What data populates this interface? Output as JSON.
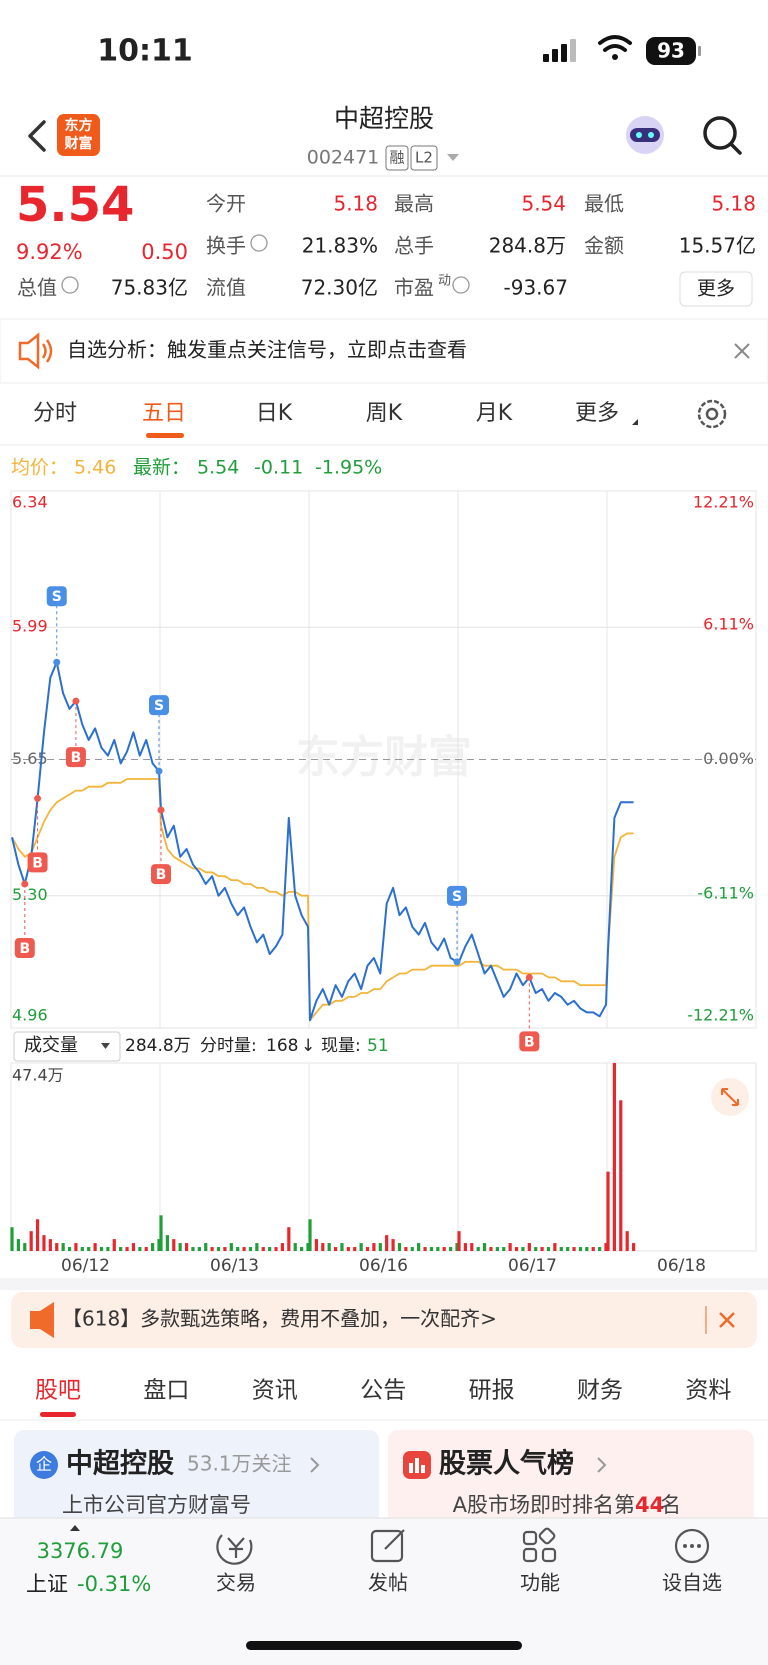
{
  "status_bar": {
    "time": "10:11",
    "battery": "93"
  },
  "header": {
    "logo": [
      "东方",
      "财富"
    ],
    "title": "中超控股",
    "code": "002471",
    "badges": [
      "融",
      "L2"
    ]
  },
  "quote": {
    "price": "5.54",
    "change_pct": "9.92%",
    "change": "0.50",
    "fields": [
      [
        {
          "label": "今开",
          "value": "5.18"
        },
        {
          "label": "最高",
          "value": "5.54"
        },
        {
          "label": "最低",
          "value": "5.18"
        }
      ],
      [
        {
          "label": "换手",
          "value": "21.83%"
        },
        {
          "label": "总手",
          "value": "284.8万"
        },
        {
          "label": "金额",
          "value": "15.57亿"
        }
      ],
      [
        {
          "label": "总值",
          "value": "75.83亿"
        },
        {
          "label": "流值",
          "value": "72.30亿"
        },
        {
          "label": "市盈",
          "sup": "动",
          "value": "-93.67"
        }
      ]
    ],
    "more": "更多"
  },
  "notice": {
    "text": "自选分析：触发重点关注信号，立即点击查看"
  },
  "chart_tabs": [
    "分时",
    "五日",
    "日K",
    "周K",
    "月K",
    "更多"
  ],
  "chart": {
    "legend": {
      "avg_label": "均价：",
      "avg": "5.46",
      "latest_label": "最新：",
      "latest": "5.54",
      "change": "-0.11",
      "change_pct": "-1.95%"
    },
    "watermark": "东方财富",
    "price_chart": {
      "type": "line",
      "categories": [
        "06/12",
        "06/13",
        "06/16",
        "06/17",
        "06/18"
      ],
      "ylim": [
        4.96,
        6.34
      ],
      "yticks": [
        6.34,
        5.99,
        5.65,
        {
          "value": 5.3,
          "label": "5.30"
        },
        4.96
      ],
      "y2lim": [
        -12.21,
        12.21
      ],
      "y2ticks": [
        {
          "value": 12.21,
          "label": "12.21%"
        },
        {
          "value": 6.11,
          "label": "6.11%"
        },
        {
          "value": 0,
          "label": "0.00%"
        },
        {
          "value": -6.11,
          "label": "-6.11%"
        },
        {
          "value": -12.21,
          "label": "-12.21%"
        }
      ],
      "series": [
        {
          "name": "最新",
          "color": "#2b6fd1",
          "values": [
            5.45,
            5.38,
            5.33,
            5.4,
            5.55,
            5.72,
            5.86,
            5.9,
            5.82,
            5.78,
            5.8,
            5.74,
            5.7,
            5.73,
            5.68,
            5.66,
            5.7,
            5.64,
            5.67,
            5.72,
            5.66,
            5.7,
            5.64,
            5.62,
            5.52,
            5.45,
            5.48,
            5.4,
            5.42,
            5.38,
            5.36,
            5.33,
            5.35,
            5.3,
            5.32,
            5.28,
            5.25,
            5.27,
            5.22,
            5.18,
            5.2,
            5.15,
            5.17,
            5.2,
            5.5,
            5.3,
            5.25,
            5.22,
            4.98,
            5.03,
            5.06,
            5.02,
            5.07,
            5.04,
            5.08,
            5.1,
            5.06,
            5.12,
            5.14,
            5.1,
            5.28,
            5.32,
            5.25,
            5.27,
            5.22,
            5.2,
            5.23,
            5.18,
            5.16,
            5.19,
            5.14,
            5.13,
            5.13,
            5.17,
            5.2,
            5.15,
            5.1,
            5.12,
            5.08,
            5.04,
            5.06,
            5.1,
            5.07,
            5.09,
            5.05,
            5.06,
            5.03,
            5.05,
            5.04,
            5.02,
            5.03,
            5.01,
            5.0,
            5.0,
            4.99,
            5.02,
            5.16,
            5.5,
            5.54,
            5.54,
            5.54
          ]
        },
        {
          "name": "均价",
          "color": "#f2b53a",
          "values": [
            5.45,
            5.42,
            5.4,
            5.41,
            5.45,
            5.49,
            5.52,
            5.54,
            5.55,
            5.56,
            5.57,
            5.57,
            5.58,
            5.58,
            5.58,
            5.59,
            5.59,
            5.59,
            5.6,
            5.6,
            5.6,
            5.6,
            5.6,
            5.6,
            5.48,
            5.42,
            5.4,
            5.39,
            5.38,
            5.37,
            5.37,
            5.36,
            5.36,
            5.35,
            5.35,
            5.34,
            5.34,
            5.33,
            5.33,
            5.32,
            5.32,
            5.31,
            5.31,
            5.3,
            5.31,
            5.31,
            5.3,
            5.3,
            4.98,
            5.0,
            5.02,
            5.02,
            5.03,
            5.03,
            5.04,
            5.04,
            5.05,
            5.05,
            5.06,
            5.06,
            5.08,
            5.09,
            5.1,
            5.1,
            5.11,
            5.11,
            5.11,
            5.12,
            5.12,
            5.12,
            5.12,
            5.12,
            5.12,
            5.13,
            5.13,
            5.13,
            5.12,
            5.12,
            5.12,
            5.11,
            5.11,
            5.11,
            5.1,
            5.1,
            5.1,
            5.1,
            5.09,
            5.09,
            5.08,
            5.08,
            5.08,
            5.07,
            5.07,
            5.07,
            5.07,
            5.07,
            5.16,
            5.4,
            5.45,
            5.46,
            5.46
          ]
        }
      ],
      "signals": [
        "S",
        "S",
        "B",
        "B",
        "B",
        "B",
        "S",
        "B"
      ]
    },
    "volume_toolbar": {
      "selector": "成交量",
      "total": "284.8万",
      "minute_label": "分时量:",
      "minute": "168",
      "arrow": "↓",
      "current_label": "现量:",
      "current": "51"
    },
    "volume_chart": {
      "type": "bar",
      "ylim": [
        0,
        47.4
      ],
      "yticks": [
        {
          "value": 47.4,
          "label": "47.4万"
        }
      ],
      "up_color": "#e8262d",
      "down_color": "#1f9e3a",
      "values": [
        6,
        3,
        2,
        5,
        8,
        4,
        3,
        2,
        2,
        1,
        2,
        1,
        1,
        2,
        1,
        1,
        3,
        1,
        1,
        2,
        1,
        1,
        2,
        3,
        9,
        4,
        3,
        2,
        2,
        1,
        1,
        2,
        1,
        1,
        1,
        2,
        1,
        1,
        1,
        2,
        1,
        1,
        1,
        2,
        6,
        2,
        1,
        2,
        8,
        3,
        2,
        2,
        1,
        2,
        1,
        1,
        2,
        1,
        2,
        2,
        4,
        3,
        2,
        1,
        1,
        2,
        1,
        1,
        1,
        1,
        1,
        2,
        5,
        2,
        2,
        1,
        2,
        1,
        1,
        1,
        2,
        1,
        1,
        2,
        1,
        1,
        1,
        2,
        1,
        1,
        1,
        1,
        1,
        1,
        1,
        2,
        20,
        47.4,
        38,
        5,
        2
      ]
    }
  },
  "ad": {
    "text": "【618】多款甄选策略，费用不叠加，一次配齐>"
  },
  "info_tabs": [
    "股吧",
    "盘口",
    "资讯",
    "公告",
    "研报",
    "财务",
    "资料"
  ],
  "cards": [
    {
      "icon": "企",
      "title": "中超控股",
      "meta": "53.1万关注",
      "sub": "上市公司官方财富号"
    },
    {
      "title": "股票人气榜",
      "sub_prefix": "A股市场即时排名第",
      "rank": "44",
      "sub_suffix": "名"
    }
  ],
  "bottom_nav": {
    "index_value": "3376.79",
    "index_name": "上证",
    "index_change": "-0.31%",
    "items": [
      "交易",
      "发帖",
      "功能",
      "设自选"
    ]
  }
}
